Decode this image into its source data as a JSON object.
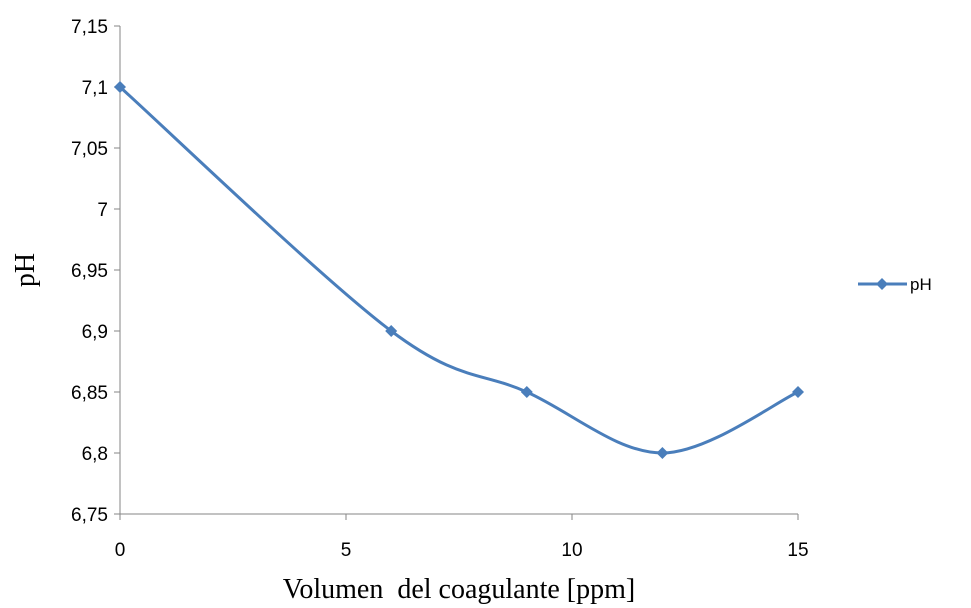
{
  "chart_data": {
    "type": "line",
    "smooth": true,
    "xlabel": "Volumen  del coagulante [ppm]",
    "ylabel": "pH",
    "xlim": [
      0,
      15
    ],
    "ylim": [
      6.75,
      7.15
    ],
    "x_ticks": [
      "0",
      "5",
      "10",
      "15"
    ],
    "y_ticks": [
      "6,75",
      "6,8",
      "6,85",
      "6,9",
      "6,95",
      "7",
      "7,05",
      "7,1",
      "7,15"
    ],
    "grid": false,
    "legend": "right",
    "series": [
      {
        "name": "pH",
        "color": "#4A7EBB",
        "marker": "diamond",
        "x": [
          0,
          6,
          9,
          12,
          15
        ],
        "y": [
          7.1,
          6.9,
          6.85,
          6.8,
          6.85
        ]
      }
    ]
  }
}
